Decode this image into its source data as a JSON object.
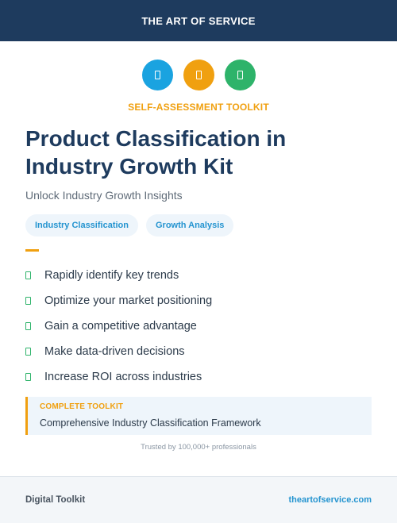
{
  "banner": {
    "brand": "THE ART OF SERVICE"
  },
  "badges": [
    {
      "icon": "document-icon",
      "color": "#1aa3e0"
    },
    {
      "icon": "document-icon",
      "color": "#f0a010"
    },
    {
      "icon": "document-icon",
      "color": "#2eb36a"
    }
  ],
  "eyebrow": {
    "text": "SELF-ASSESSMENT TOOLKIT",
    "color": "#f0a010"
  },
  "title": "Product Classification in Industry Growth Kit",
  "subtitle": "Unlock Industry Growth Insights",
  "tags": [
    "Industry Classification",
    "Growth Analysis"
  ],
  "benefits": [
    "Rapidly identify key trends",
    "Optimize your market positioning",
    "Gain a competitive advantage",
    "Make data-driven decisions",
    "Increase ROI across industries"
  ],
  "callout": {
    "label": "COMPLETE TOOLKIT",
    "text": "Comprehensive Industry Classification Framework"
  },
  "trust": "Trusted by 100,000+ professionals",
  "footer": {
    "left": "Digital Toolkit",
    "right": "theartofservice.com"
  }
}
